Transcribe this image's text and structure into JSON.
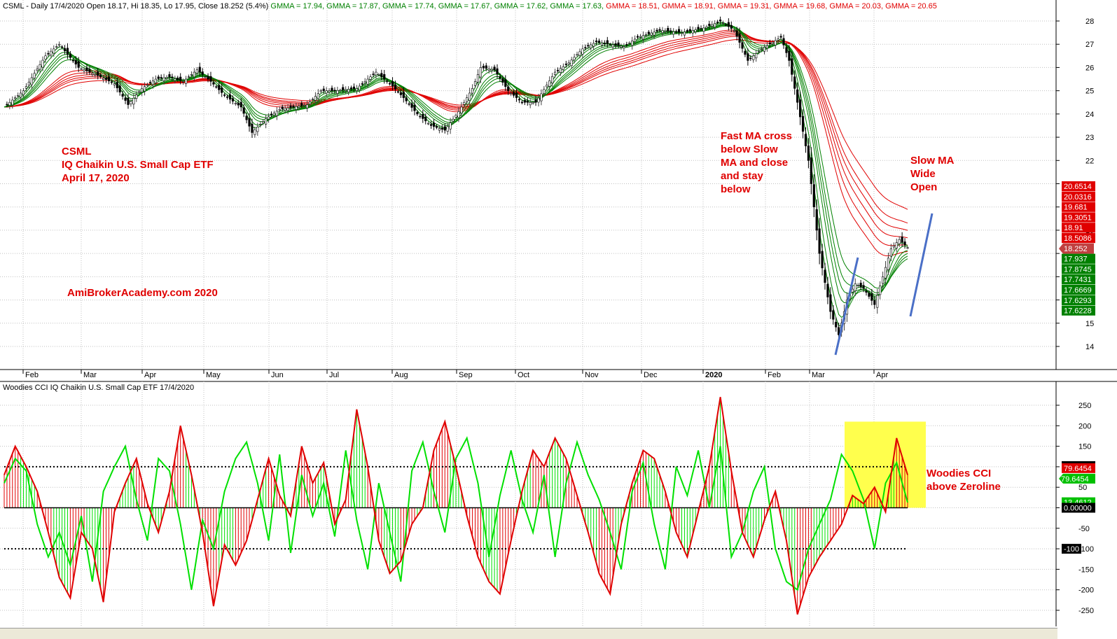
{
  "header": {
    "price_title": "CSML - Daily 17/4/2020 Open 18.17, Hi 18.35, Lo 17.95, Close 18.252 (5.4%)",
    "gmma_readout": [
      {
        "label": "GMMA = 17.94,",
        "color": "#008000"
      },
      {
        "label": "GMMA = 17.87,",
        "color": "#008000"
      },
      {
        "label": "GMMA = 17.74,",
        "color": "#008000"
      },
      {
        "label": "GMMA = 17.67,",
        "color": "#008000"
      },
      {
        "label": "GMMA = 17.62,",
        "color": "#008000"
      },
      {
        "label": "GMMA = 17.63,",
        "color": "#008000"
      },
      {
        "label": "GMMA = 18.51,",
        "color": "#e00000"
      },
      {
        "label": "GMMA = 18.91,",
        "color": "#e00000"
      },
      {
        "label": "GMMA = 19.31,",
        "color": "#e00000"
      },
      {
        "label": "GMMA = 19.68,",
        "color": "#e00000"
      },
      {
        "label": "GMMA = 20.03,",
        "color": "#e00000"
      },
      {
        "label": "GMMA = 20.65",
        "color": "#e00000"
      }
    ],
    "cci_title": "Woodies CCI  IQ Chaikin U.S. Small Cap ETF 17/4/2020"
  },
  "annotations": {
    "ticker_lines": [
      "CSML",
      "IQ Chaikin U.S. Small Cap ETF",
      "April 17, 2020"
    ],
    "watermark": "AmiBrokerAcademy.com   2020",
    "fast_ma_note": [
      "Fast MA cross",
      "below Slow",
      "MA and close",
      "and stay",
      "below"
    ],
    "slow_ma_note": [
      "Slow MA",
      "Wide",
      "Open"
    ],
    "cci_note": [
      "Woodies CCI",
      "above Zeroline"
    ]
  },
  "colors": {
    "red": "#e00000",
    "green": "#008000",
    "cci_line": "#00e000",
    "highlight": "#ffff4d",
    "trend_line": "#4a6fc7",
    "grid": "#c0c0c0"
  },
  "chart_data": [
    {
      "type": "line",
      "title": "CSML - Daily 17/4/2020",
      "x_labels": [
        "Feb",
        "Mar",
        "Apr",
        "May",
        "Jun",
        "Jul",
        "Aug",
        "Sep",
        "Oct",
        "Nov",
        "Dec",
        "2020",
        "Feb",
        "Mar",
        "Apr"
      ],
      "y_ticks": [
        14,
        15,
        16,
        17,
        18,
        19,
        20,
        21,
        22,
        23,
        24,
        25,
        26,
        27,
        28
      ],
      "y_tick_labels": [
        "14",
        "15",
        "",
        "",
        "",
        "19",
        "",
        "",
        "22",
        "23",
        "24",
        "25",
        "26",
        "27",
        "28"
      ],
      "ylim": [
        13,
        28.5
      ],
      "grid": true,
      "anchors": [
        [
          0,
          24.3
        ],
        [
          7,
          25.0
        ],
        [
          15,
          26.5
        ],
        [
          20,
          27.0
        ],
        [
          27,
          26.0
        ],
        [
          35,
          25.6
        ],
        [
          40,
          25.3
        ],
        [
          45,
          24.4
        ],
        [
          50,
          25.1
        ],
        [
          55,
          25.5
        ],
        [
          60,
          25.6
        ],
        [
          65,
          25.4
        ],
        [
          70,
          25.9
        ],
        [
          75,
          25.4
        ],
        [
          80,
          24.8
        ],
        [
          86,
          24.3
        ],
        [
          90,
          23.2
        ],
        [
          95,
          23.8
        ],
        [
          100,
          24.2
        ],
        [
          110,
          24.4
        ],
        [
          115,
          25.0
        ],
        [
          120,
          25.0
        ],
        [
          128,
          25.1
        ],
        [
          135,
          25.8
        ],
        [
          141,
          25.2
        ],
        [
          145,
          24.7
        ],
        [
          150,
          24.0
        ],
        [
          155,
          23.5
        ],
        [
          160,
          23.3
        ],
        [
          165,
          24.1
        ],
        [
          170,
          25.1
        ],
        [
          173,
          26.0
        ],
        [
          178,
          25.9
        ],
        [
          183,
          25.0
        ],
        [
          188,
          24.5
        ],
        [
          193,
          24.5
        ],
        [
          200,
          25.8
        ],
        [
          205,
          26.2
        ],
        [
          210,
          26.8
        ],
        [
          215,
          27.1
        ],
        [
          220,
          27.0
        ],
        [
          225,
          26.9
        ],
        [
          230,
          27.3
        ],
        [
          238,
          27.6
        ],
        [
          246,
          27.5
        ],
        [
          254,
          27.7
        ],
        [
          260,
          28.0
        ],
        [
          265,
          27.6
        ],
        [
          270,
          26.3
        ],
        [
          275,
          26.8
        ],
        [
          282,
          27.3
        ],
        [
          285,
          26.3
        ],
        [
          288,
          24.5
        ],
        [
          292,
          22.0
        ],
        [
          296,
          18.0
        ],
        [
          300,
          15.5
        ],
        [
          303,
          14.5
        ],
        [
          306,
          16.0
        ],
        [
          309,
          16.7
        ],
        [
          312,
          16.5
        ],
        [
          316,
          15.8
        ],
        [
          319,
          17.0
        ],
        [
          322,
          18.2
        ],
        [
          325,
          18.6
        ],
        [
          328,
          18.25
        ]
      ],
      "series": [
        {
          "name": "GMMA",
          "group": "fast",
          "periods": [
            3,
            5,
            8,
            10,
            12,
            15
          ],
          "last_values": [
            17.937,
            17.8745,
            17.7431,
            17.6669,
            17.6293,
            17.6228
          ]
        },
        {
          "name": "GMMA",
          "group": "slow",
          "periods": [
            30,
            35,
            40,
            45,
            50,
            60
          ],
          "last_values": [
            18.5086,
            18.91,
            19.3051,
            19.681,
            20.0316,
            20.6514
          ]
        }
      ],
      "last_close": 18.252,
      "right_axis_tags": [
        {
          "text": "20.6514",
          "bg": "#e00000"
        },
        {
          "text": "20.0316",
          "bg": "#e00000"
        },
        {
          "text": "19.681",
          "bg": "#e00000"
        },
        {
          "text": "19.3051",
          "bg": "#e00000"
        },
        {
          "text": "18.91",
          "bg": "#e00000"
        },
        {
          "text": "18.5086",
          "bg": "#e00000"
        },
        {
          "text": "18.252",
          "bg": "#c04040"
        },
        {
          "text": "17.937",
          "bg": "#008000"
        },
        {
          "text": "17.8745",
          "bg": "#008000"
        },
        {
          "text": "17.7431",
          "bg": "#008000"
        },
        {
          "text": "17.6669",
          "bg": "#008000"
        },
        {
          "text": "17.6293",
          "bg": "#008000"
        },
        {
          "text": "17.6228",
          "bg": "#008000"
        }
      ]
    },
    {
      "type": "line",
      "title": "Woodies CCI  IQ Chaikin U.S. Small Cap ETF 17/4/2020",
      "y_ticks": [
        -250,
        -200,
        -150,
        -100,
        -50,
        0,
        50,
        100,
        150,
        200,
        250
      ],
      "ylim": [
        -275,
        280
      ],
      "reference_lines": [
        100,
        0,
        -100
      ],
      "cci_anchors": [
        [
          0,
          80
        ],
        [
          4,
          150
        ],
        [
          8,
          100
        ],
        [
          12,
          40
        ],
        [
          16,
          -60
        ],
        [
          20,
          -170
        ],
        [
          24,
          -220
        ],
        [
          28,
          -60
        ],
        [
          32,
          -100
        ],
        [
          36,
          -230
        ],
        [
          40,
          -10
        ],
        [
          44,
          60
        ],
        [
          48,
          120
        ],
        [
          52,
          10
        ],
        [
          56,
          -60
        ],
        [
          60,
          40
        ],
        [
          64,
          200
        ],
        [
          68,
          80
        ],
        [
          72,
          -60
        ],
        [
          76,
          -240
        ],
        [
          80,
          -90
        ],
        [
          84,
          -140
        ],
        [
          88,
          -80
        ],
        [
          92,
          20
        ],
        [
          96,
          120
        ],
        [
          100,
          30
        ],
        [
          104,
          -20
        ],
        [
          108,
          150
        ],
        [
          112,
          60
        ],
        [
          116,
          110
        ],
        [
          120,
          -40
        ],
        [
          124,
          20
        ],
        [
          128,
          240
        ],
        [
          132,
          100
        ],
        [
          136,
          -80
        ],
        [
          140,
          -160
        ],
        [
          144,
          -130
        ],
        [
          148,
          -40
        ],
        [
          152,
          0
        ],
        [
          156,
          140
        ],
        [
          160,
          210
        ],
        [
          164,
          100
        ],
        [
          168,
          -20
        ],
        [
          172,
          -120
        ],
        [
          176,
          -180
        ],
        [
          180,
          -210
        ],
        [
          184,
          -80
        ],
        [
          188,
          40
        ],
        [
          192,
          140
        ],
        [
          196,
          100
        ],
        [
          200,
          170
        ],
        [
          204,
          120
        ],
        [
          208,
          30
        ],
        [
          212,
          -60
        ],
        [
          216,
          -160
        ],
        [
          220,
          -210
        ],
        [
          224,
          -40
        ],
        [
          228,
          60
        ],
        [
          232,
          140
        ],
        [
          236,
          120
        ],
        [
          240,
          40
        ],
        [
          244,
          -60
        ],
        [
          248,
          -120
        ],
        [
          252,
          -10
        ],
        [
          256,
          100
        ],
        [
          260,
          270
        ],
        [
          264,
          90
        ],
        [
          268,
          -60
        ],
        [
          272,
          -120
        ],
        [
          276,
          -30
        ],
        [
          280,
          40
        ],
        [
          284,
          -80
        ],
        [
          288,
          -260
        ],
        [
          292,
          -170
        ],
        [
          296,
          -120
        ],
        [
          300,
          -80
        ],
        [
          304,
          -40
        ],
        [
          308,
          30
        ],
        [
          312,
          10
        ],
        [
          316,
          50
        ],
        [
          320,
          -10
        ],
        [
          324,
          170
        ],
        [
          328,
          80
        ]
      ],
      "turbo_anchors": [
        [
          0,
          60
        ],
        [
          4,
          120
        ],
        [
          8,
          90
        ],
        [
          12,
          -40
        ],
        [
          16,
          -120
        ],
        [
          20,
          -60
        ],
        [
          24,
          -140
        ],
        [
          28,
          -20
        ],
        [
          32,
          -180
        ],
        [
          36,
          40
        ],
        [
          40,
          100
        ],
        [
          44,
          150
        ],
        [
          48,
          20
        ],
        [
          52,
          -80
        ],
        [
          56,
          120
        ],
        [
          60,
          90
        ],
        [
          64,
          -40
        ],
        [
          68,
          -200
        ],
        [
          72,
          -30
        ],
        [
          76,
          -100
        ],
        [
          80,
          40
        ],
        [
          84,
          120
        ],
        [
          88,
          160
        ],
        [
          92,
          60
        ],
        [
          96,
          -80
        ],
        [
          100,
          130
        ],
        [
          104,
          -110
        ],
        [
          108,
          80
        ],
        [
          112,
          -20
        ],
        [
          116,
          60
        ],
        [
          120,
          -70
        ],
        [
          124,
          140
        ],
        [
          128,
          -30
        ],
        [
          132,
          -150
        ],
        [
          136,
          60
        ],
        [
          140,
          -60
        ],
        [
          144,
          -180
        ],
        [
          148,
          90
        ],
        [
          152,
          160
        ],
        [
          156,
          40
        ],
        [
          160,
          -60
        ],
        [
          164,
          120
        ],
        [
          168,
          170
        ],
        [
          172,
          60
        ],
        [
          176,
          -120
        ],
        [
          180,
          30
        ],
        [
          184,
          140
        ],
        [
          188,
          20
        ],
        [
          192,
          -60
        ],
        [
          196,
          80
        ],
        [
          200,
          -120
        ],
        [
          204,
          60
        ],
        [
          208,
          160
        ],
        [
          212,
          80
        ],
        [
          216,
          20
        ],
        [
          220,
          -60
        ],
        [
          224,
          -150
        ],
        [
          228,
          40
        ],
        [
          232,
          110
        ],
        [
          236,
          -40
        ],
        [
          240,
          -150
        ],
        [
          244,
          100
        ],
        [
          248,
          30
        ],
        [
          252,
          140
        ],
        [
          256,
          0
        ],
        [
          260,
          150
        ],
        [
          264,
          -120
        ],
        [
          268,
          -60
        ],
        [
          272,
          40
        ],
        [
          276,
          100
        ],
        [
          280,
          -100
        ],
        [
          284,
          -180
        ],
        [
          288,
          -200
        ],
        [
          292,
          -100
        ],
        [
          296,
          -40
        ],
        [
          300,
          20
        ],
        [
          304,
          130
        ],
        [
          308,
          90
        ],
        [
          312,
          20
        ],
        [
          316,
          -100
        ],
        [
          320,
          60
        ],
        [
          324,
          110
        ],
        [
          328,
          13
        ]
      ],
      "series": [
        {
          "name": "CCI",
          "color": "#e00000",
          "last": 79.6454
        },
        {
          "name": "Turbo CCI",
          "color": "#00e000",
          "last": 13.4612
        }
      ],
      "right_axis_tags": [
        {
          "text": "100",
          "bg": "#000000"
        },
        {
          "text": "79.6454",
          "bg": "#e00000"
        },
        {
          "text": "79.6454",
          "bg": "#00c000"
        },
        {
          "text": "13.4612",
          "bg": "#00c000"
        },
        {
          "text": "0.00000",
          "bg": "#000000"
        },
        {
          "text": "-100",
          "bg": "#000000"
        }
      ]
    }
  ]
}
